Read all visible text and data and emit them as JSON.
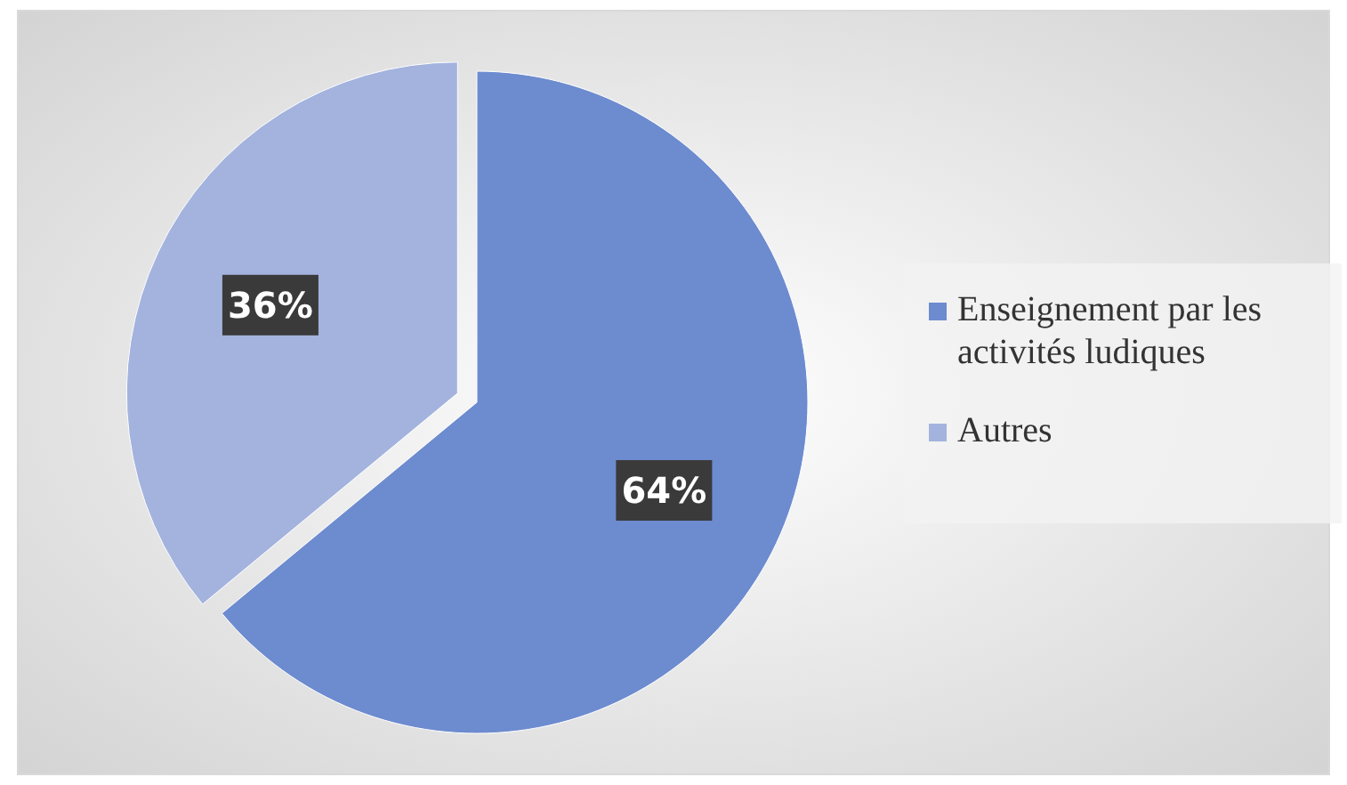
{
  "chart_data": {
    "type": "pie",
    "categories": [
      "Enseignement par les activités ludiques",
      "Autres"
    ],
    "values": [
      64,
      36
    ],
    "colors": [
      "#6d8bcf",
      "#a3b3de"
    ],
    "value_labels": [
      "64%",
      "36%"
    ],
    "legend": "right"
  }
}
